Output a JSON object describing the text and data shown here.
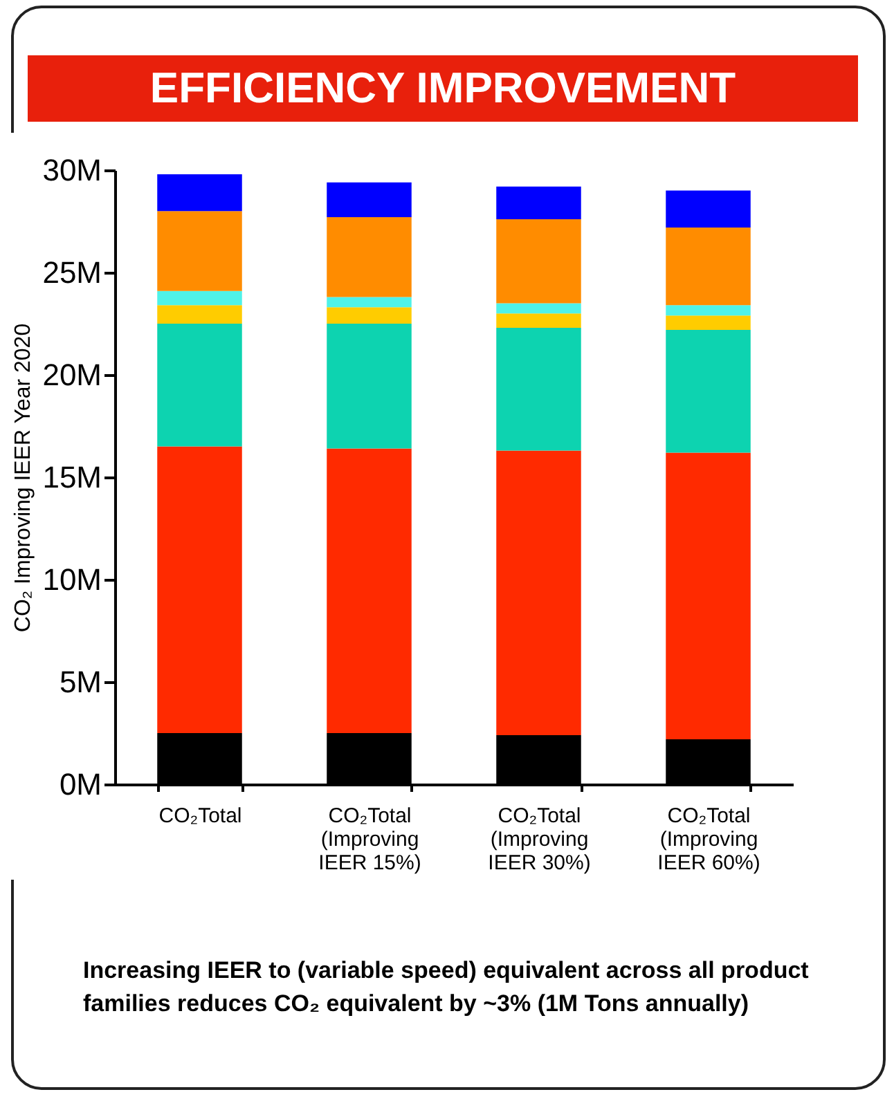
{
  "chart_data": {
    "type": "bar",
    "title": "EFFICIENCY IMPROVEMENT",
    "ylabel": "CO₂ Improving IEER  Year 2020",
    "categories": [
      "CO₂Total",
      "CO₂Total (Improving IEER 15%)",
      "CO₂Total (Improving IEER 30%)",
      "CO₂Total (Improving IEER 60%)"
    ],
    "stacked": true,
    "grid": false,
    "legend": false,
    "series": [
      {
        "color": "#000000",
        "values": [
          2500000,
          2500000,
          2400000,
          2200000
        ]
      },
      {
        "color": "#ff2a00",
        "values": [
          14000000,
          13900000,
          13900000,
          14000000
        ]
      },
      {
        "color": "#0dd3b0",
        "values": [
          6000000,
          6100000,
          6000000,
          6000000
        ]
      },
      {
        "color": "#ffcc00",
        "values": [
          900000,
          800000,
          700000,
          700000
        ]
      },
      {
        "color": "#4ff2e8",
        "values": [
          700000,
          500000,
          500000,
          500000
        ]
      },
      {
        "color": "#ff8c00",
        "values": [
          3900000,
          3900000,
          4100000,
          3800000
        ]
      },
      {
        "color": "#0000ff",
        "values": [
          1800000,
          1700000,
          1600000,
          1800000
        ]
      }
    ],
    "ylim": [
      0,
      30000000
    ],
    "yticks": [
      {
        "value": 0,
        "label": "0M"
      },
      {
        "value": 5000000,
        "label": "5M"
      },
      {
        "value": 10000000,
        "label": "10M"
      },
      {
        "value": 15000000,
        "label": "15M"
      },
      {
        "value": 20000000,
        "label": "20M"
      },
      {
        "value": 25000000,
        "label": "25M"
      },
      {
        "value": 30000000,
        "label": "30M"
      }
    ],
    "annotations": [
      "Increasing IEER to (variable speed) equivalent across all product families reduces CO₂ equivalent by ~3% (1M Tons annually)"
    ]
  }
}
